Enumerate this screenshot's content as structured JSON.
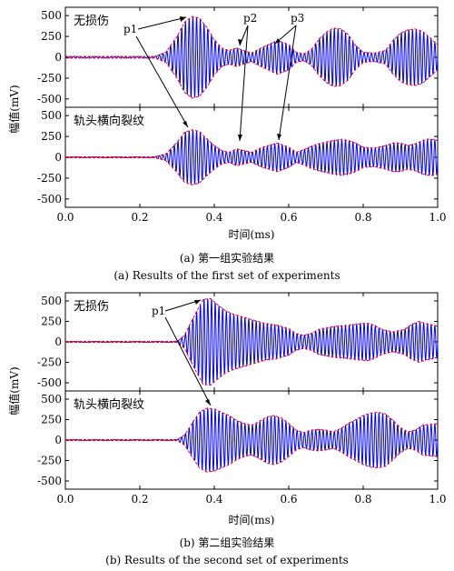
{
  "figures": [
    {
      "caption_cn": "(a) 第一组实验结果",
      "caption_en": "(a) Results of the first set of experiments",
      "xlabel": "时间(ms)",
      "ylabel": "幅值(mV)",
      "annotations": [
        "p1",
        "p2",
        "p3"
      ]
    },
    {
      "caption_cn": "(b) 第二组实验结果",
      "caption_en": "(b) Results of the second set of experiments",
      "xlabel": "时间(ms)",
      "ylabel": "幅值(mV)",
      "annotations": [
        "p1"
      ]
    }
  ],
  "colors": {
    "signal": "#0000ff",
    "envelope": "#ff0000",
    "axis": "#000000"
  },
  "chart_data": [
    {
      "type": "line",
      "figure": "a",
      "title": "无损伤",
      "xlim": [
        0.0,
        1.0
      ],
      "ylim": [
        -600,
        600
      ],
      "xticks": [
        0.0,
        0.2,
        0.4,
        0.6,
        0.8,
        1.0
      ],
      "xtick_labels": [
        "0.0",
        "0.2",
        "0.4",
        "0.6",
        "0.8",
        "1.0"
      ],
      "yticks": [
        500,
        250,
        0,
        -250,
        -500
      ],
      "carrier_freq_khz": 100,
      "envelope": {
        "x": [
          0.0,
          0.24,
          0.27,
          0.3,
          0.32,
          0.34,
          0.36,
          0.38,
          0.4,
          0.42,
          0.44,
          0.46,
          0.48,
          0.5,
          0.53,
          0.57,
          0.6,
          0.62,
          0.64,
          0.66,
          0.68,
          0.7,
          0.72,
          0.74,
          0.76,
          0.78,
          0.8,
          0.83,
          0.86,
          0.88,
          0.9,
          0.92,
          0.94,
          0.96,
          0.98,
          1.0
        ],
        "y": [
          10,
          10,
          60,
          250,
          420,
          490,
          470,
          360,
          210,
          110,
          80,
          110,
          80,
          50,
          120,
          200,
          150,
          60,
          40,
          90,
          210,
          300,
          350,
          340,
          270,
          140,
          60,
          50,
          80,
          200,
          290,
          330,
          340,
          310,
          230,
          150
        ]
      }
    },
    {
      "type": "line",
      "figure": "a",
      "title": "轨头横向裂纹",
      "xlim": [
        0.0,
        1.0
      ],
      "ylim": [
        -600,
        600
      ],
      "xticks": [
        0.0,
        0.2,
        0.4,
        0.6,
        0.8,
        1.0
      ],
      "xtick_labels": [
        "0.0",
        "0.2",
        "0.4",
        "0.6",
        "0.8",
        "1.0"
      ],
      "yticks": [
        500,
        250,
        0,
        -250,
        -500
      ],
      "carrier_freq_khz": 100,
      "envelope": {
        "x": [
          0.0,
          0.24,
          0.27,
          0.3,
          0.32,
          0.34,
          0.36,
          0.38,
          0.4,
          0.42,
          0.44,
          0.46,
          0.48,
          0.5,
          0.53,
          0.57,
          0.6,
          0.62,
          0.64,
          0.66,
          0.68,
          0.7,
          0.72,
          0.74,
          0.76,
          0.78,
          0.8,
          0.83,
          0.86,
          0.88,
          0.9,
          0.92,
          0.94,
          0.96,
          0.98,
          1.0
        ],
        "y": [
          5,
          5,
          40,
          180,
          300,
          330,
          310,
          220,
          140,
          80,
          60,
          100,
          80,
          60,
          120,
          170,
          120,
          60,
          90,
          130,
          160,
          180,
          200,
          210,
          200,
          170,
          120,
          110,
          140,
          170,
          170,
          140,
          160,
          200,
          220,
          200
        ]
      }
    },
    {
      "type": "line",
      "figure": "b",
      "title": "无损伤",
      "xlim": [
        0.0,
        1.0
      ],
      "ylim": [
        -600,
        600
      ],
      "xticks": [
        0.0,
        0.2,
        0.4,
        0.6,
        0.8,
        1.0
      ],
      "xtick_labels": [
        "0.0",
        "0.2",
        "0.4",
        "0.6",
        "0.8",
        "1.0"
      ],
      "yticks": [
        500,
        250,
        0,
        -250,
        -500
      ],
      "carrier_freq_khz": 100,
      "envelope": {
        "x": [
          0.0,
          0.3,
          0.32,
          0.35,
          0.37,
          0.39,
          0.41,
          0.43,
          0.45,
          0.48,
          0.51,
          0.54,
          0.57,
          0.6,
          0.62,
          0.64,
          0.66,
          0.68,
          0.7,
          0.73,
          0.76,
          0.79,
          0.81,
          0.83,
          0.85,
          0.88,
          0.91,
          0.93,
          0.95,
          0.97,
          1.0
        ],
        "y": [
          5,
          5,
          80,
          350,
          520,
          530,
          450,
          380,
          340,
          300,
          260,
          220,
          200,
          160,
          100,
          80,
          100,
          150,
          170,
          190,
          200,
          220,
          230,
          200,
          150,
          120,
          150,
          210,
          250,
          220,
          190
        ]
      }
    },
    {
      "type": "line",
      "figure": "b",
      "title": "轨头横向裂纹",
      "xlim": [
        0.0,
        1.0
      ],
      "ylim": [
        -600,
        600
      ],
      "xticks": [
        0.0,
        0.2,
        0.4,
        0.6,
        0.8,
        1.0
      ],
      "xtick_labels": [
        "0.0",
        "0.2",
        "0.4",
        "0.6",
        "0.8",
        "1.0"
      ],
      "yticks": [
        500,
        250,
        0,
        -250,
        -500
      ],
      "carrier_freq_khz": 100,
      "envelope": {
        "x": [
          0.0,
          0.3,
          0.32,
          0.34,
          0.36,
          0.38,
          0.4,
          0.42,
          0.44,
          0.46,
          0.48,
          0.5,
          0.52,
          0.54,
          0.56,
          0.58,
          0.6,
          0.62,
          0.64,
          0.66,
          0.68,
          0.7,
          0.72,
          0.74,
          0.76,
          0.78,
          0.8,
          0.82,
          0.84,
          0.86,
          0.88,
          0.9,
          0.92,
          0.94,
          0.96,
          1.0
        ],
        "y": [
          5,
          5,
          60,
          200,
          340,
          390,
          380,
          340,
          300,
          240,
          200,
          180,
          220,
          280,
          300,
          270,
          200,
          120,
          90,
          120,
          130,
          120,
          100,
          140,
          200,
          250,
          300,
          330,
          340,
          320,
          240,
          150,
          100,
          120,
          180,
          200
        ]
      }
    }
  ]
}
